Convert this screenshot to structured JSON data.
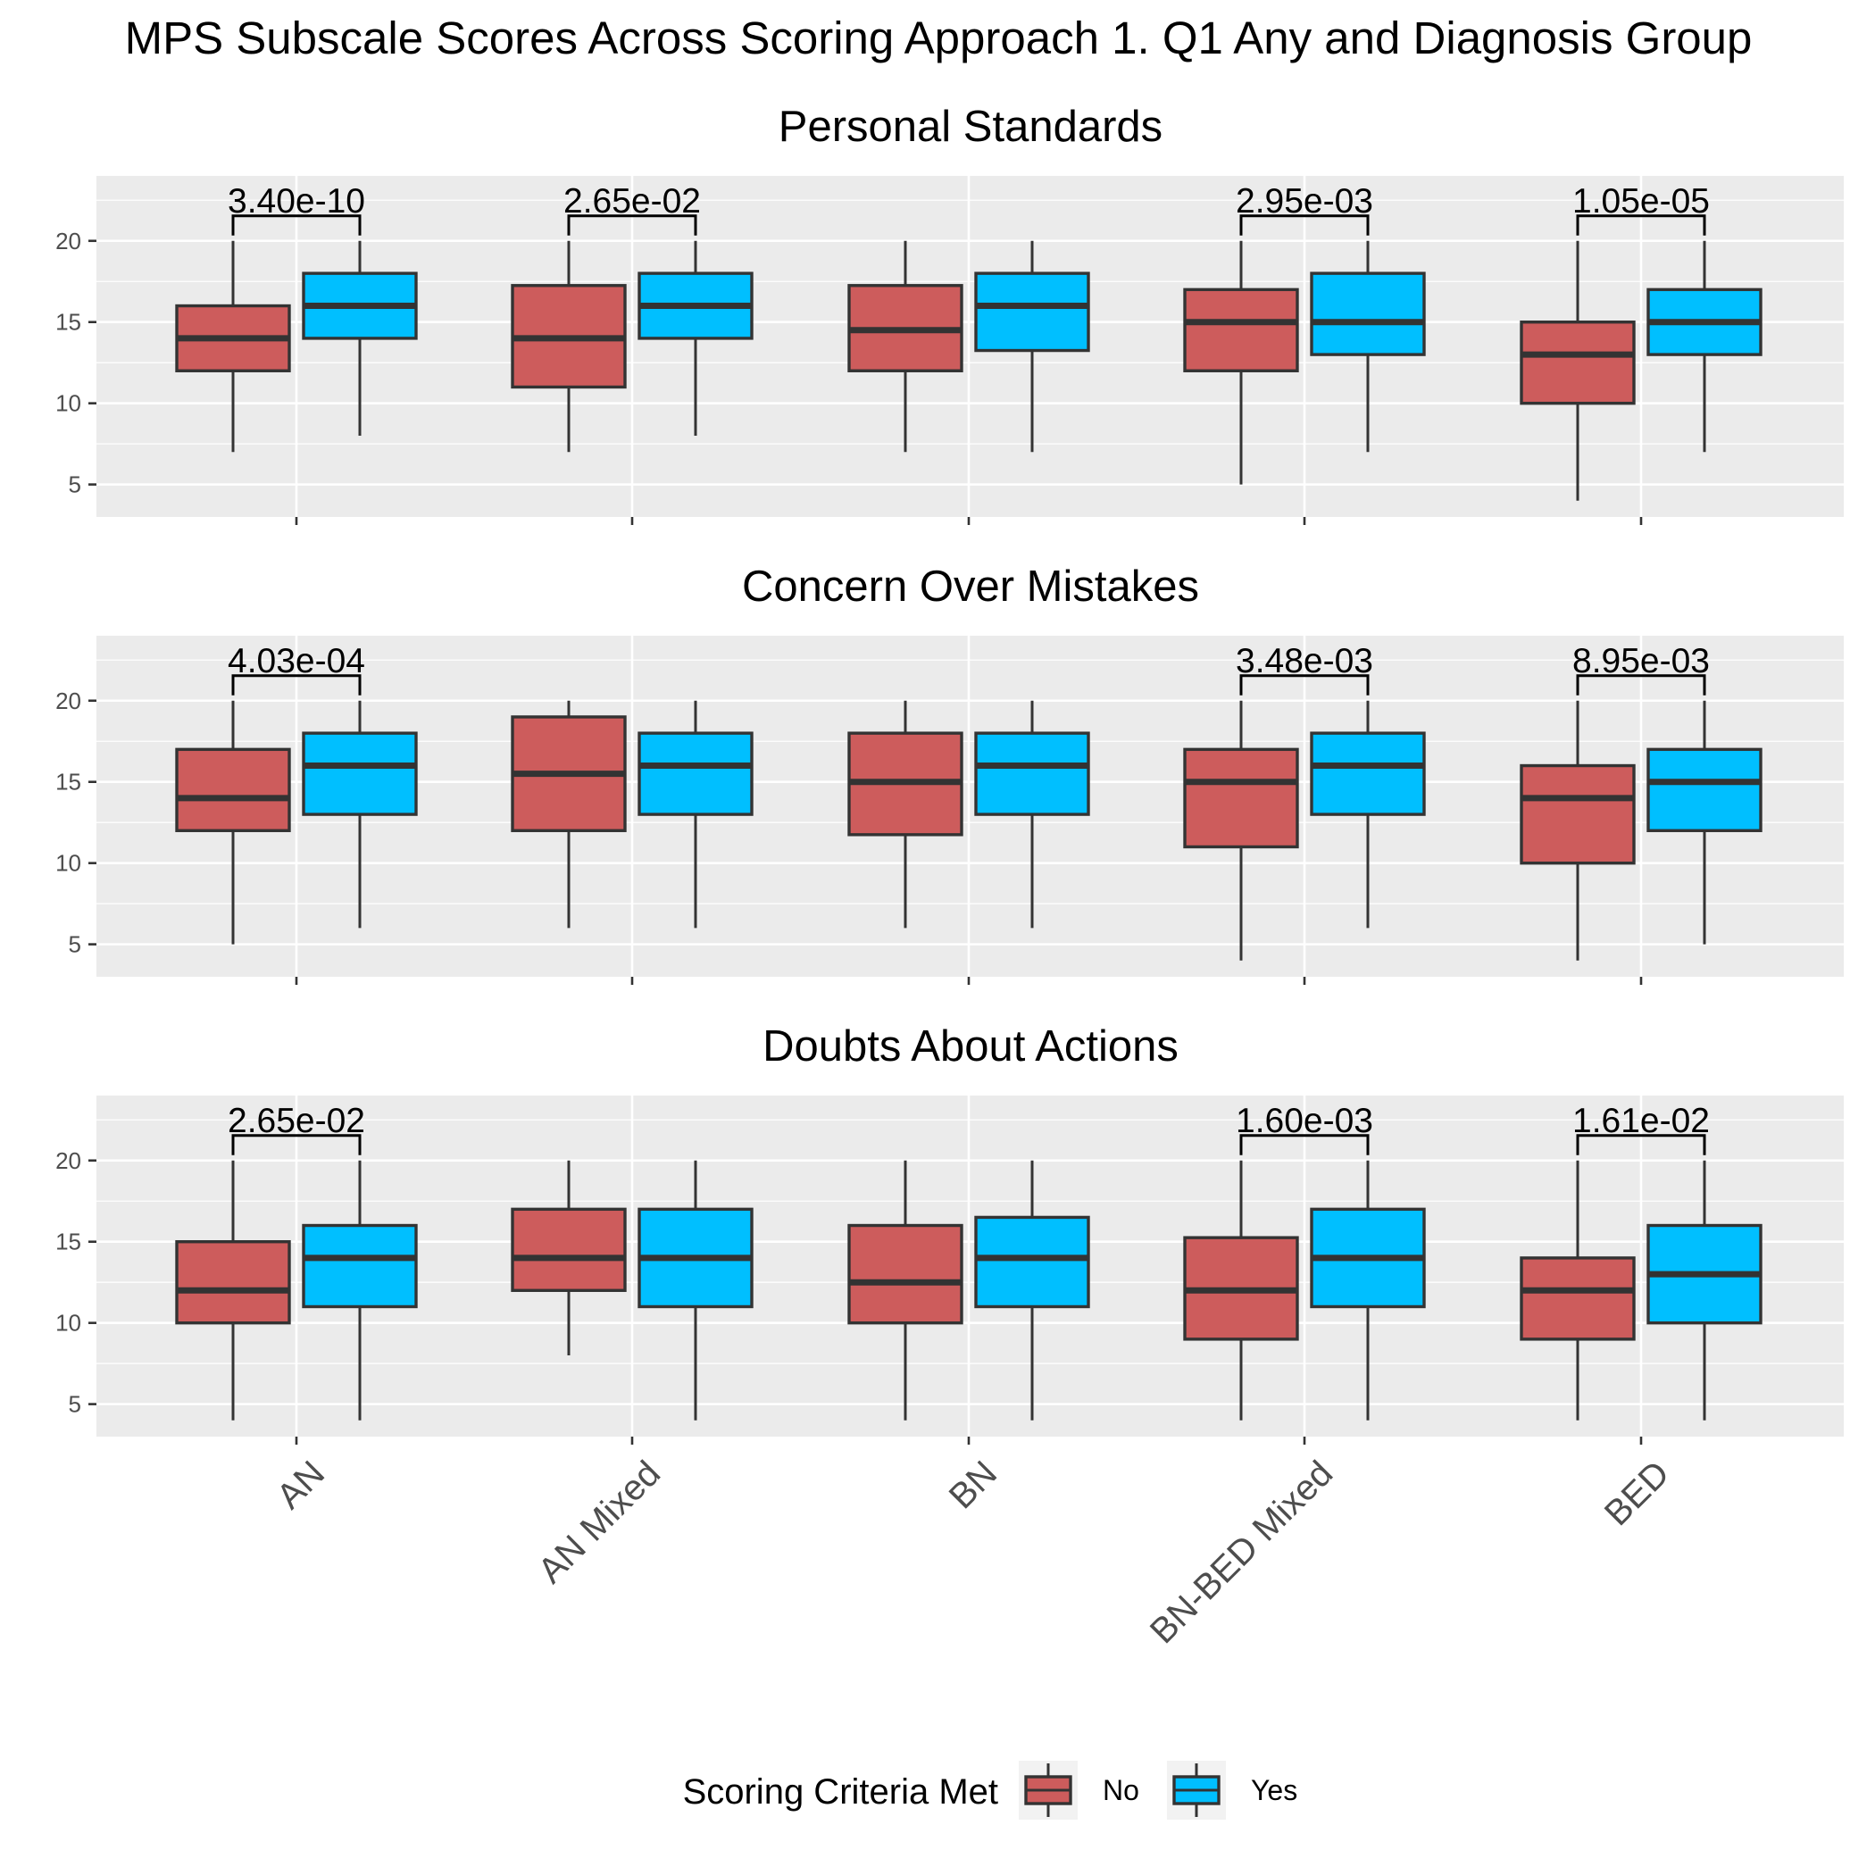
{
  "chart_data": {
    "type": "boxplot",
    "title": "MPS Subscale Scores Across Scoring Approach 1. Q1 Any and Diagnosis Group",
    "categories": [
      "AN",
      "AN Mixed",
      "BN",
      "BN-BED Mixed",
      "BED"
    ],
    "y_ticks": [
      "5",
      "10",
      "15",
      "20"
    ],
    "ylim": [
      3,
      24
    ],
    "colors": {
      "No": "#cd5c5c",
      "Yes": "#00bfff"
    },
    "legend": {
      "title": "Scoring Criteria Met",
      "position": "bottom",
      "entries": [
        "No",
        "Yes"
      ]
    },
    "panels": [
      {
        "title": "Personal Standards",
        "groups": [
          {
            "category": "AN",
            "pvalue": "3.40e-10",
            "no": {
              "min": 7,
              "q1": 12,
              "median": 14,
              "q3": 16,
              "max": 20
            },
            "yes": {
              "min": 8,
              "q1": 14,
              "median": 16,
              "q3": 18,
              "max": 20
            }
          },
          {
            "category": "AN Mixed",
            "pvalue": "2.65e-02",
            "no": {
              "min": 7,
              "q1": 11,
              "median": 14,
              "q3": 17.25,
              "max": 20
            },
            "yes": {
              "min": 8,
              "q1": 14,
              "median": 16,
              "q3": 18,
              "max": 20
            }
          },
          {
            "category": "BN",
            "pvalue": "",
            "no": {
              "min": 7,
              "q1": 12,
              "median": 14.5,
              "q3": 17.25,
              "max": 20
            },
            "yes": {
              "min": 7,
              "q1": 13.25,
              "median": 16,
              "q3": 18,
              "max": 20
            }
          },
          {
            "category": "BN-BED Mixed",
            "pvalue": "2.95e-03",
            "no": {
              "min": 5,
              "q1": 12,
              "median": 15,
              "q3": 17,
              "max": 20
            },
            "yes": {
              "min": 7,
              "q1": 13,
              "median": 15,
              "q3": 18,
              "max": 20
            }
          },
          {
            "category": "BED",
            "pvalue": "1.05e-05",
            "no": {
              "min": 4,
              "q1": 10,
              "median": 13,
              "q3": 15,
              "max": 20
            },
            "yes": {
              "min": 7,
              "q1": 13,
              "median": 15,
              "q3": 17,
              "max": 20
            }
          }
        ]
      },
      {
        "title": "Concern Over Mistakes",
        "groups": [
          {
            "category": "AN",
            "pvalue": "4.03e-04",
            "no": {
              "min": 5,
              "q1": 12,
              "median": 14,
              "q3": 17,
              "max": 20
            },
            "yes": {
              "min": 6,
              "q1": 13,
              "median": 16,
              "q3": 18,
              "max": 20
            }
          },
          {
            "category": "AN Mixed",
            "pvalue": "",
            "no": {
              "min": 6,
              "q1": 12,
              "median": 15.5,
              "q3": 19,
              "max": 20
            },
            "yes": {
              "min": 6,
              "q1": 13,
              "median": 16,
              "q3": 18,
              "max": 20
            }
          },
          {
            "category": "BN",
            "pvalue": "",
            "no": {
              "min": 6,
              "q1": 11.75,
              "median": 15,
              "q3": 18,
              "max": 20
            },
            "yes": {
              "min": 6,
              "q1": 13,
              "median": 16,
              "q3": 18,
              "max": 20
            }
          },
          {
            "category": "BN-BED Mixed",
            "pvalue": "3.48e-03",
            "no": {
              "min": 4,
              "q1": 11,
              "median": 15,
              "q3": 17,
              "max": 20
            },
            "yes": {
              "min": 6,
              "q1": 13,
              "median": 16,
              "q3": 18,
              "max": 20
            }
          },
          {
            "category": "BED",
            "pvalue": "8.95e-03",
            "no": {
              "min": 4,
              "q1": 10,
              "median": 14,
              "q3": 16,
              "max": 20
            },
            "yes": {
              "min": 5,
              "q1": 12,
              "median": 15,
              "q3": 17,
              "max": 20
            }
          }
        ]
      },
      {
        "title": "Doubts About Actions",
        "groups": [
          {
            "category": "AN",
            "pvalue": "2.65e-02",
            "no": {
              "min": 4,
              "q1": 10,
              "median": 12,
              "q3": 15,
              "max": 20
            },
            "yes": {
              "min": 4,
              "q1": 11,
              "median": 14,
              "q3": 16,
              "max": 20
            }
          },
          {
            "category": "AN Mixed",
            "pvalue": "",
            "no": {
              "min": 8,
              "q1": 12,
              "median": 14,
              "q3": 17,
              "max": 20
            },
            "yes": {
              "min": 4,
              "q1": 11,
              "median": 14,
              "q3": 17,
              "max": 20
            }
          },
          {
            "category": "BN",
            "pvalue": "",
            "no": {
              "min": 4,
              "q1": 10,
              "median": 12.5,
              "q3": 16,
              "max": 20
            },
            "yes": {
              "min": 4,
              "q1": 11,
              "median": 14,
              "q3": 16.5,
              "max": 20
            }
          },
          {
            "category": "BN-BED Mixed",
            "pvalue": "1.60e-03",
            "no": {
              "min": 4,
              "q1": 9,
              "median": 12,
              "q3": 15.25,
              "max": 20
            },
            "yes": {
              "min": 4,
              "q1": 11,
              "median": 14,
              "q3": 17,
              "max": 20
            }
          },
          {
            "category": "BED",
            "pvalue": "1.61e-02",
            "no": {
              "min": 4,
              "q1": 9,
              "median": 12,
              "q3": 14,
              "max": 20
            },
            "yes": {
              "min": 4,
              "q1": 10,
              "median": 13,
              "q3": 16,
              "max": 20
            }
          }
        ]
      }
    ]
  }
}
